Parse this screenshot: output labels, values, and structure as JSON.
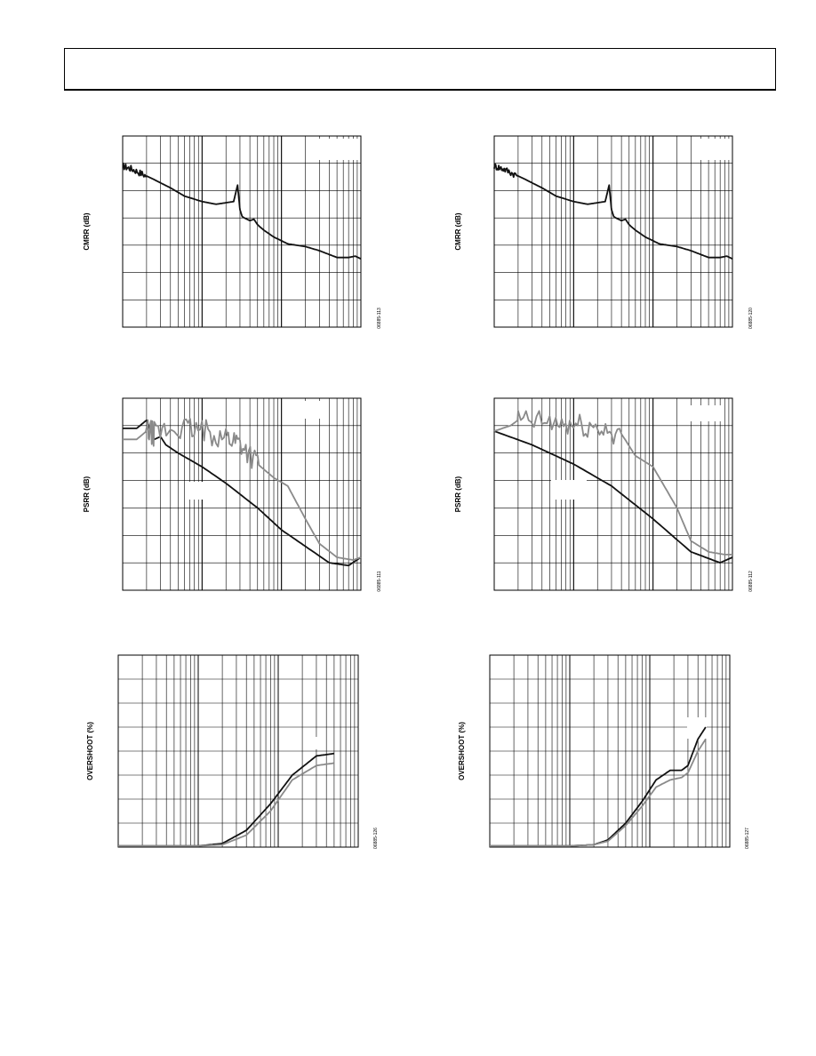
{
  "page": {
    "header_text": ""
  },
  "colors": {
    "black_series": "#111111",
    "gray_series": "#8a8a8a",
    "grid": "#000000"
  },
  "chart_data": [
    {
      "type": "line",
      "ylabel": "CMRR (dB)",
      "figure_id": "06885-113",
      "x_scale": "log",
      "xlim": [
        1,
        1000
      ],
      "ylim": [
        0,
        7
      ],
      "grid": true,
      "legend_box": "top-right",
      "series": [
        {
          "color": "black",
          "x": [
            1,
            1.3,
            1.8,
            2.5,
            4,
            6,
            10,
            15,
            25,
            28,
            30,
            32,
            34,
            40,
            45,
            50,
            60,
            80,
            120,
            200,
            300,
            500,
            700,
            850,
            1000
          ],
          "y": [
            5.9,
            5.8,
            5.6,
            5.4,
            5.1,
            4.8,
            4.6,
            4.5,
            4.6,
            5.2,
            4.3,
            4.05,
            4.0,
            3.9,
            3.95,
            3.75,
            3.55,
            3.3,
            3.05,
            2.95,
            2.8,
            2.55,
            2.55,
            2.6,
            2.5
          ]
        }
      ]
    },
    {
      "type": "line",
      "ylabel": "CMRR (dB)",
      "figure_id": "06885-120",
      "x_scale": "log",
      "xlim": [
        1,
        1000
      ],
      "ylim": [
        0,
        7
      ],
      "grid": true,
      "legend_box": "top-right",
      "series": [
        {
          "color": "black",
          "x": [
            1,
            1.3,
            1.8,
            2.5,
            4,
            6,
            10,
            15,
            25,
            28,
            30,
            32,
            34,
            40,
            45,
            50,
            60,
            80,
            120,
            200,
            300,
            500,
            700,
            850,
            1000
          ],
          "y": [
            5.9,
            5.8,
            5.6,
            5.4,
            5.1,
            4.8,
            4.6,
            4.5,
            4.6,
            5.2,
            4.3,
            4.05,
            4.0,
            3.9,
            3.95,
            3.75,
            3.55,
            3.3,
            3.05,
            2.95,
            2.8,
            2.55,
            2.55,
            2.6,
            2.5
          ]
        }
      ]
    },
    {
      "type": "line",
      "ylabel": "PSRR (dB)",
      "figure_id": "06885-111",
      "x_scale": "log",
      "xlim": [
        1,
        1000
      ],
      "ylim": [
        0,
        7
      ],
      "grid": true,
      "legend_box": "top-right",
      "series": [
        {
          "color": "black",
          "x": [
            1,
            1.5,
            2,
            2.5,
            3,
            3.5,
            5,
            10,
            20,
            50,
            100,
            200,
            400,
            700,
            1000
          ],
          "y": [
            5.9,
            5.9,
            6.2,
            5.5,
            5.6,
            5.3,
            5.0,
            4.5,
            3.9,
            3.0,
            2.2,
            1.6,
            1.0,
            0.9,
            1.2
          ]
        },
        {
          "color": "gray",
          "noisy_segment": [
            2,
            50
          ],
          "x": [
            1,
            1.5,
            2,
            2.5,
            5,
            10,
            20,
            30,
            50,
            80,
            120,
            200,
            300,
            500,
            800,
            1000
          ],
          "y": [
            5.5,
            5.5,
            5.8,
            5.7,
            5.9,
            5.8,
            5.6,
            5.4,
            4.6,
            4.1,
            3.8,
            2.6,
            1.7,
            1.2,
            1.1,
            1.2
          ]
        }
      ]
    },
    {
      "type": "line",
      "ylabel": "PSRR (dB)",
      "figure_id": "06885-112",
      "x_scale": "log",
      "xlim": [
        1,
        1000
      ],
      "ylim": [
        0,
        7
      ],
      "grid": true,
      "legend_box": "top-right",
      "series": [
        {
          "color": "black",
          "x": [
            1,
            3,
            10,
            30,
            100,
            300,
            700,
            1000
          ],
          "y": [
            5.8,
            5.3,
            4.6,
            3.8,
            2.6,
            1.4,
            1.0,
            1.2
          ]
        },
        {
          "color": "gray",
          "noisy_segment": [
            2,
            40
          ],
          "x": [
            1,
            1.6,
            2,
            5,
            10,
            20,
            40,
            60,
            100,
            200,
            300,
            500,
            800,
            1000
          ],
          "y": [
            5.8,
            6.0,
            6.2,
            6.1,
            6.0,
            5.9,
            5.7,
            4.9,
            4.5,
            3.0,
            1.8,
            1.4,
            1.3,
            1.3
          ]
        }
      ]
    },
    {
      "type": "line",
      "ylabel": "OVERSHOOT (%)",
      "figure_id": "06885-126",
      "x_scale": "log",
      "xlim": [
        1,
        1000
      ],
      "ylim": [
        0,
        8
      ],
      "grid": true,
      "legend_box": "right",
      "series": [
        {
          "color": "black",
          "x": [
            1,
            5,
            10,
            20,
            40,
            80,
            150,
            300,
            500
          ],
          "y": [
            0.05,
            0.05,
            0.05,
            0.15,
            0.7,
            1.8,
            3.0,
            3.8,
            3.9
          ]
        },
        {
          "color": "gray",
          "x": [
            1,
            5,
            10,
            20,
            40,
            80,
            150,
            300,
            500
          ],
          "y": [
            0.05,
            0.05,
            0.05,
            0.1,
            0.5,
            1.5,
            2.8,
            3.4,
            3.5
          ]
        }
      ]
    },
    {
      "type": "line",
      "ylabel": "OVERSHOOT (%)",
      "figure_id": "06885-127",
      "x_scale": "log",
      "xlim": [
        1,
        1000
      ],
      "ylim": [
        0,
        8
      ],
      "grid": true,
      "legend_box": "right",
      "series": [
        {
          "color": "black",
          "x": [
            1,
            10,
            20,
            30,
            50,
            80,
            120,
            180,
            250,
            300,
            400,
            500
          ],
          "y": [
            0.05,
            0.05,
            0.1,
            0.3,
            1.0,
            1.9,
            2.8,
            3.2,
            3.2,
            3.4,
            4.5,
            5.0
          ]
        },
        {
          "color": "gray",
          "x": [
            1,
            10,
            20,
            30,
            50,
            80,
            120,
            180,
            250,
            300,
            400,
            500
          ],
          "y": [
            0.05,
            0.05,
            0.1,
            0.25,
            0.9,
            1.7,
            2.5,
            2.8,
            2.9,
            3.1,
            4.0,
            4.5
          ]
        }
      ]
    }
  ]
}
